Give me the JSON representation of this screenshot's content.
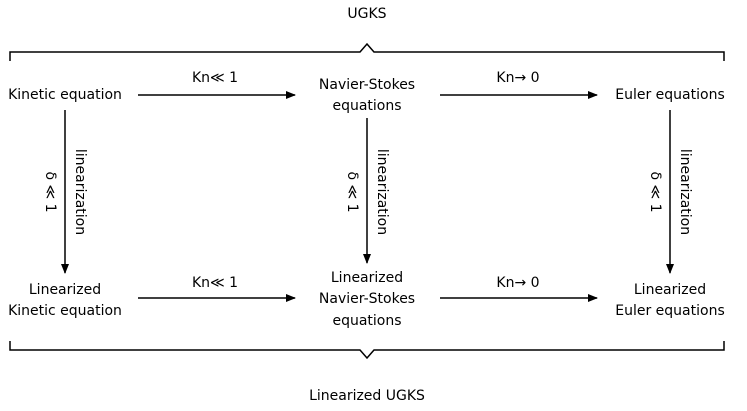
{
  "header": {
    "title": "UGKS"
  },
  "footer": {
    "title": "Linearized UGKS"
  },
  "nodes": [
    {
      "lines": [
        "Kinetic equation"
      ]
    },
    {
      "lines": [
        "Navier-Stokes",
        "equations"
      ]
    },
    {
      "lines": [
        "Euler equations"
      ]
    },
    {
      "lines": [
        "Linearized",
        "Kinetic equation"
      ]
    },
    {
      "lines": [
        "Linearized",
        "Navier-Stokes",
        "equations"
      ]
    },
    {
      "lines": [
        "Linearized",
        "Euler equations"
      ]
    }
  ],
  "horizontal_edges": [
    {
      "label": "Kn≪ 1"
    },
    {
      "label": "Kn→ 0"
    },
    {
      "label": "Kn≪ 1"
    },
    {
      "label": "Kn→ 0"
    }
  ],
  "vertical_edges": [
    {
      "label": "linearization",
      "condition": "δ ≪ 1"
    },
    {
      "label": "linearization",
      "condition": "δ ≪ 1"
    },
    {
      "label": "linearization",
      "condition": "δ ≪ 1"
    }
  ]
}
